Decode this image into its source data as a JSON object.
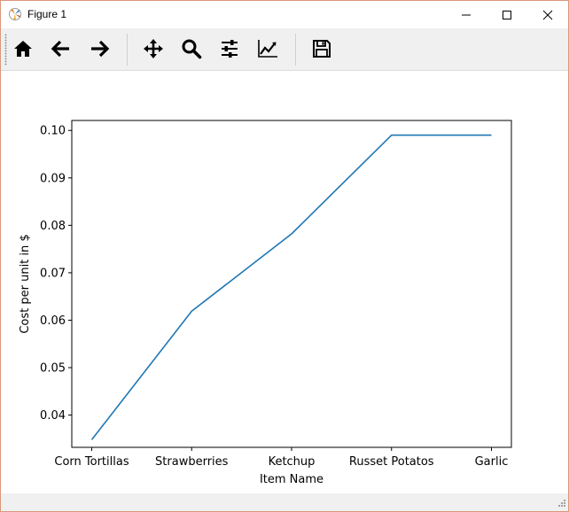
{
  "window": {
    "title": "Figure 1",
    "icon": "matplotlib-icon",
    "controls": [
      "minimize-icon",
      "maximize-icon",
      "close-icon"
    ]
  },
  "toolbar": {
    "buttons": [
      {
        "name": "home",
        "icon": "home-icon"
      },
      {
        "name": "back",
        "icon": "arrow-left-icon"
      },
      {
        "name": "forward",
        "icon": "arrow-right-icon"
      },
      {
        "name": "pan",
        "icon": "move-icon"
      },
      {
        "name": "zoom",
        "icon": "magnifier-icon"
      },
      {
        "name": "subplots",
        "icon": "sliders-icon"
      },
      {
        "name": "edit-axis",
        "icon": "chart-line-icon"
      },
      {
        "name": "save",
        "icon": "floppy-disk-icon"
      }
    ]
  },
  "chart_data": {
    "type": "line",
    "categories": [
      "Corn Tortillas",
      "Strawberries",
      "Ketchup",
      "Russet Potatos",
      "Garlic"
    ],
    "series": [
      {
        "values": [
          0.0348,
          0.0619,
          0.0782,
          0.099,
          0.099
        ],
        "color": "#1f77b4"
      }
    ],
    "xlabel": "Item Name",
    "ylabel": "Cost per unit in $",
    "ylim": [
      0.0332,
      0.1021
    ],
    "yticks": [
      0.04,
      0.05,
      0.06,
      0.07,
      0.08,
      0.09,
      0.1
    ],
    "ytick_labels": [
      "0.04",
      "0.05",
      "0.06",
      "0.07",
      "0.08",
      "0.09",
      "0.10"
    ],
    "grid": false
  }
}
